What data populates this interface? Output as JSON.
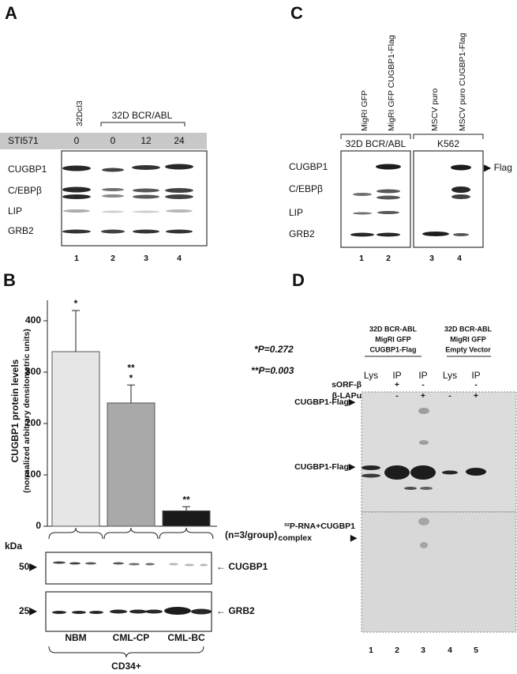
{
  "panel_a": {
    "label": "A",
    "lanes": [
      "32Dcl3",
      "32D BCR/ABL"
    ],
    "treatment": "STI571",
    "doses": [
      "0",
      "0",
      "12",
      "24"
    ],
    "rows": [
      "CUGBP1",
      "C/EBPβ",
      "LIP",
      "GRB2"
    ],
    "lane_numbers": [
      "1",
      "2",
      "3",
      "4"
    ]
  },
  "panel_c": {
    "label": "C",
    "lanes": [
      "MigRI GFP",
      "MigRI GFP CUGBP1-Flag",
      "MSCV puro",
      "MSCV puro CUGBP1-Flag"
    ],
    "groups": [
      "32D BCR/ABL",
      "K562"
    ],
    "rows": [
      "CUGBP1",
      "C/EBPβ",
      "LIP",
      "GRB2"
    ],
    "flag": "▶ Flag",
    "lane_numbers": [
      "1",
      "2",
      "3",
      "4"
    ]
  },
  "chart_data": {
    "type": "bar",
    "label": "B",
    "y_label": [
      "CUGBP1 protein levels",
      "(normalized arbitrary densitometric units)"
    ],
    "categories": [
      "NBM",
      "CML-CP",
      "CML-BC"
    ],
    "values": [
      340,
      240,
      30
    ],
    "errors": [
      80,
      35,
      8
    ],
    "colors": [
      "#e6e6e6",
      "#a9a9a9",
      "#1a1a1a"
    ],
    "bar_labels": [
      [
        "*"
      ],
      [
        "**",
        "*"
      ],
      [
        "**"
      ]
    ],
    "annotations": [
      "*P=0.272",
      "**P=0.003"
    ],
    "n_label": "(n=3/group)",
    "ylim": [
      0,
      440
    ],
    "yticks": [
      0,
      100,
      200,
      300,
      400
    ],
    "blot": {
      "unit": "kDa",
      "markers": [
        "50▶",
        "25▶"
      ],
      "rows": [
        "← CUGBP1",
        "← GRB2"
      ]
    },
    "group_label": "CD34+"
  },
  "panel_d": {
    "label": "D",
    "headers": [
      [
        "32D BCR-ABL",
        "MigRI GFP",
        "CUGBP1-Flag"
      ],
      [
        "32D BCR-ABL",
        "MigRI GFP",
        "Empty Vector"
      ]
    ],
    "lanes": [
      "Lys",
      "IP",
      "IP",
      "Lys",
      "IP"
    ],
    "conditions": [
      {
        "name": "sORF-β",
        "signs": [
          null,
          "+",
          "-",
          null,
          "-"
        ]
      },
      {
        "name": "β-LAPu",
        "signs": [
          null,
          "-",
          "+",
          "-",
          "+"
        ]
      }
    ],
    "band_labels": [
      "CUGBP1-Flag▶",
      "CUGBP1-Flag▶",
      "³²P-RNA+CUGBP1",
      "complex",
      "▶"
    ],
    "lane_numbers": [
      "1",
      "2",
      "3",
      "4",
      "5"
    ]
  }
}
